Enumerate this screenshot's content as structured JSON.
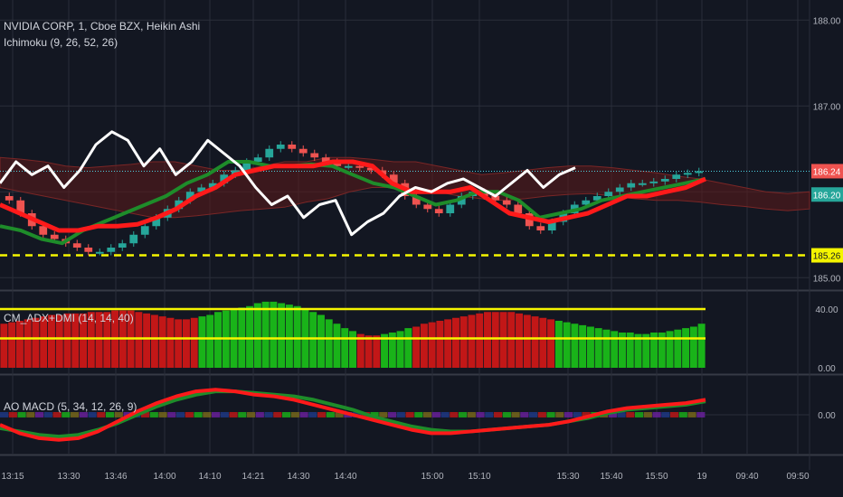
{
  "header": {
    "symbol_line": "NVIDIA CORP, 1, Cboe BZX, Heikin Ashi",
    "ichimoku_label": "Ichimoku (9, 26, 52, 26)",
    "adx_label": "CM_ADX+DMI (14, 14, 40)",
    "macd_label": "AO MACD (5, 34, 12, 26, 9)"
  },
  "colors": {
    "background": "#131722",
    "up": "#26a69a",
    "down": "#ef5350",
    "white_line": "#ffffff",
    "red_line": "#ff1a1a",
    "green_line": "#1e8c2a",
    "yellow": "#f5f500",
    "cyan_dotted": "#4dd0e1",
    "adx_green": "#19b319",
    "adx_red": "#c21717"
  },
  "chart_data": [
    {
      "type": "candlestick",
      "title": "NVIDIA CORP, 1, Cboe BZX, Heikin Ashi",
      "y_ticks": [
        "188.00",
        "187.00",
        "186.24",
        "186.20",
        "185.26",
        "185.00"
      ],
      "ylim": [
        184.95,
        188.15
      ],
      "x_ticks": [
        "13:15",
        "13:30",
        "13:46",
        "14:00",
        "14:10",
        "14:21",
        "14:30",
        "14:40",
        "15:00",
        "15:10",
        "15:30",
        "15:40",
        "15:50",
        "19",
        "09:40",
        "09:50"
      ],
      "price_tags": [
        {
          "value": 186.24,
          "label": "186.24",
          "bg": "#ef5350"
        },
        {
          "value": 186.2,
          "label": "186.20",
          "bg": "#26a69a"
        },
        {
          "value": 185.26,
          "label": "185.26",
          "bg": "#f5f500"
        }
      ],
      "dashed_level": 185.26,
      "last_price_line": 186.24,
      "close_series": [
        185.9,
        185.75,
        185.6,
        185.5,
        185.45,
        185.4,
        185.35,
        185.3,
        185.3,
        185.35,
        185.4,
        185.5,
        185.6,
        185.7,
        185.8,
        185.9,
        186.0,
        186.05,
        186.1,
        186.2,
        186.25,
        186.35,
        186.4,
        186.5,
        186.55,
        186.5,
        186.45,
        186.4,
        186.35,
        186.3,
        186.3,
        186.28,
        186.25,
        186.2,
        186.1,
        185.95,
        185.85,
        185.8,
        185.75,
        185.85,
        185.95,
        186.0,
        185.95,
        185.9,
        185.85,
        185.75,
        185.6,
        185.55,
        185.65,
        185.75,
        185.85,
        185.9,
        185.95,
        186.0,
        186.05,
        186.1,
        186.1,
        186.12,
        186.15,
        186.2,
        186.22,
        186.24
      ],
      "white_series": [
        186.1,
        186.35,
        186.2,
        186.3,
        186.05,
        186.25,
        186.55,
        186.7,
        186.6,
        186.3,
        186.5,
        186.2,
        186.35,
        186.6,
        186.45,
        186.3,
        186.05,
        185.85,
        185.95,
        185.7,
        185.85,
        185.9,
        185.5,
        185.65,
        185.75,
        185.95,
        186.05,
        186.0,
        186.1,
        186.15,
        186.05,
        185.95,
        186.1,
        186.25,
        186.05,
        186.2,
        186.28
      ],
      "red_series": [
        185.85,
        185.75,
        185.65,
        185.55,
        185.55,
        185.6,
        185.6,
        185.62,
        185.7,
        185.8,
        185.95,
        186.05,
        186.2,
        186.25,
        186.3,
        186.3,
        186.3,
        186.35,
        186.35,
        186.3,
        186.1,
        186.0,
        186.0,
        186.0,
        186.05,
        185.9,
        185.75,
        185.7,
        185.65,
        185.7,
        185.75,
        185.85,
        185.95,
        185.95,
        186.0,
        186.05,
        186.15
      ],
      "green_series": [
        185.6,
        185.55,
        185.45,
        185.4,
        185.55,
        185.65,
        185.75,
        185.85,
        185.95,
        186.1,
        186.2,
        186.35,
        186.35,
        186.3,
        186.3,
        186.32,
        186.3,
        186.2,
        186.1,
        186.05,
        185.95,
        185.85,
        185.9,
        186.0,
        186.0,
        185.9,
        185.7,
        185.75,
        185.8,
        185.9,
        185.95,
        186.0,
        186.05,
        186.1,
        186.15
      ]
    },
    {
      "type": "bar",
      "title": "CM_ADX+DMI (14, 14, 40)",
      "y_ticks": [
        "40.00",
        "0.00"
      ],
      "ylim": [
        0,
        48
      ],
      "threshold_lines": [
        40,
        20
      ],
      "values": [
        30,
        31,
        32,
        33,
        34,
        35,
        36,
        36,
        37,
        37,
        37,
        38,
        38,
        38,
        39,
        39,
        39,
        38,
        37,
        36,
        35,
        34,
        33,
        33,
        34,
        35,
        36,
        38,
        39,
        40,
        41,
        42,
        44,
        45,
        45,
        44,
        43,
        42,
        40,
        38,
        36,
        33,
        30,
        27,
        25,
        23,
        22,
        22,
        23,
        24,
        25,
        27,
        28,
        30,
        31,
        32,
        33,
        34,
        35,
        36,
        37,
        38,
        38,
        38,
        38,
        37,
        36,
        35,
        34,
        33,
        32,
        31,
        30,
        29,
        28,
        27,
        26,
        25,
        24,
        24,
        23,
        23,
        24,
        24,
        25,
        26,
        27,
        28,
        30
      ],
      "colors": [
        "red",
        "red",
        "red",
        "red",
        "red",
        "red",
        "red",
        "red",
        "red",
        "red",
        "red",
        "red",
        "red",
        "red",
        "red",
        "red",
        "red",
        "red",
        "red",
        "red",
        "red",
        "red",
        "red",
        "red",
        "red",
        "green",
        "green",
        "green",
        "green",
        "green",
        "green",
        "green",
        "green",
        "green",
        "green",
        "green",
        "green",
        "green",
        "green",
        "green",
        "green",
        "green",
        "green",
        "green",
        "green",
        "red",
        "red",
        "red",
        "green",
        "green",
        "green",
        "green",
        "red",
        "red",
        "red",
        "red",
        "red",
        "red",
        "red",
        "red",
        "red",
        "red",
        "red",
        "red",
        "red",
        "red",
        "red",
        "red",
        "red",
        "red",
        "green",
        "green",
        "green",
        "green",
        "green",
        "green",
        "green",
        "green",
        "green",
        "green",
        "green",
        "green",
        "green",
        "green",
        "green",
        "green",
        "green",
        "green",
        "green"
      ]
    },
    {
      "type": "line",
      "title": "AO MACD (5, 34, 12, 26, 9)",
      "y_ticks": [
        "0.00"
      ],
      "ylim": [
        -1,
        1
      ],
      "series": [
        {
          "values": [
            -0.3,
            -0.55,
            -0.7,
            -0.75,
            -0.7,
            -0.5,
            -0.2,
            0.1,
            0.35,
            0.55,
            0.7,
            0.75,
            0.7,
            0.6,
            0.55,
            0.45,
            0.3,
            0.15,
            0.0,
            -0.15,
            -0.3,
            -0.45,
            -0.55,
            -0.55,
            -0.5,
            -0.45,
            -0.4,
            -0.35,
            -0.3,
            -0.2,
            -0.05,
            0.1,
            0.2,
            0.25,
            0.3,
            0.35,
            0.45
          ]
        },
        {
          "values": [
            -0.4,
            -0.5,
            -0.6,
            -0.65,
            -0.6,
            -0.45,
            -0.25,
            0.0,
            0.25,
            0.45,
            0.6,
            0.7,
            0.7,
            0.65,
            0.6,
            0.55,
            0.45,
            0.3,
            0.15,
            -0.05,
            -0.2,
            -0.35,
            -0.45,
            -0.5,
            -0.5,
            -0.45,
            -0.4,
            -0.35,
            -0.3,
            -0.2,
            -0.1,
            0.05,
            0.15,
            0.2,
            0.25,
            0.3,
            0.4
          ]
        }
      ]
    }
  ]
}
